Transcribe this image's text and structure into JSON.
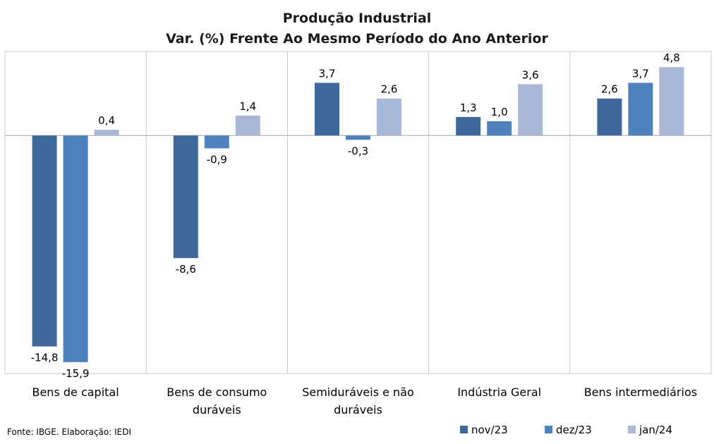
{
  "chart_data": {
    "type": "bar",
    "title_lines": [
      "Produção Industrial",
      "Var. (%) Frente Ao Mesmo Período do Ano Anterior"
    ],
    "categories": [
      [
        "Bens de capital"
      ],
      [
        "Bens de consumo",
        "duráveis"
      ],
      [
        "Semiduráveis e não",
        "duráveis"
      ],
      [
        "Indústria Geral"
      ],
      [
        "Bens intermediários"
      ]
    ],
    "series": [
      {
        "name": "nov/23",
        "color": "#3f689b",
        "values": [
          -14.8,
          -8.6,
          3.7,
          1.3,
          2.6
        ],
        "labels": [
          "-14,8",
          "-8,6",
          "3,7",
          "1,3",
          "2,6"
        ]
      },
      {
        "name": "dez/23",
        "color": "#4f81bd",
        "values": [
          -15.9,
          -0.9,
          -0.3,
          1.0,
          3.7
        ],
        "labels": [
          "-15,9",
          "-0,9",
          "-0,3",
          "1,0",
          "3,7"
        ]
      },
      {
        "name": "jan/24",
        "color": "#a8b8d6",
        "values": [
          0.4,
          1.4,
          2.6,
          3.6,
          4.8
        ],
        "labels": [
          "0,4",
          "1,4",
          "2,6",
          "3,6",
          "4,8"
        ]
      }
    ],
    "ylim": [
      -16.7,
      5.9
    ],
    "legend_position": "bottom-right",
    "grid": false,
    "source": "Fonte: IBGE. Elaboração: IEDI"
  }
}
